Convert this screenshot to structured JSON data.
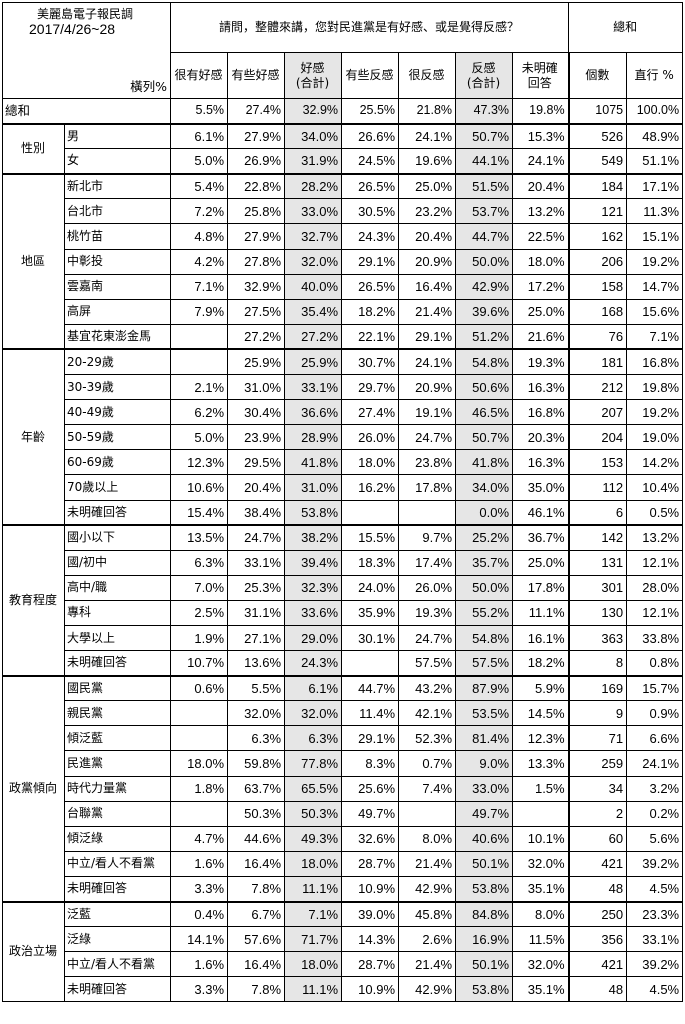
{
  "header": {
    "title_line1": "美麗島電子報民調",
    "title_line2": "2017/4/26~28",
    "corner_label": "橫列%",
    "question": "請問，整體來講，您對民進黨是有好感、或是覺得反感？",
    "total_group": "總和",
    "columns": [
      "很有好感",
      "有些好感",
      "好感\n(合計)",
      "有些反感",
      "很反感",
      "反感\n(合計)",
      "未明確\n回答",
      "個數",
      "直行 %"
    ]
  },
  "total_row": {
    "label": "總和",
    "values": [
      "5.5%",
      "27.4%",
      "32.9%",
      "25.5%",
      "21.8%",
      "47.3%",
      "19.8%",
      "1075",
      "100.0%"
    ]
  },
  "groups": [
    {
      "name": "性別",
      "rows": [
        {
          "label": "男",
          "values": [
            "6.1%",
            "27.9%",
            "34.0%",
            "26.6%",
            "24.1%",
            "50.7%",
            "15.3%",
            "526",
            "48.9%"
          ]
        },
        {
          "label": "女",
          "values": [
            "5.0%",
            "26.9%",
            "31.9%",
            "24.5%",
            "19.6%",
            "44.1%",
            "24.1%",
            "549",
            "51.1%"
          ]
        }
      ]
    },
    {
      "name": "地區",
      "rows": [
        {
          "label": "新北市",
          "values": [
            "5.4%",
            "22.8%",
            "28.2%",
            "26.5%",
            "25.0%",
            "51.5%",
            "20.4%",
            "184",
            "17.1%"
          ]
        },
        {
          "label": "台北市",
          "values": [
            "7.2%",
            "25.8%",
            "33.0%",
            "30.5%",
            "23.2%",
            "53.7%",
            "13.2%",
            "121",
            "11.3%"
          ]
        },
        {
          "label": "桃竹苗",
          "values": [
            "4.8%",
            "27.9%",
            "32.7%",
            "24.3%",
            "20.4%",
            "44.7%",
            "22.5%",
            "162",
            "15.1%"
          ]
        },
        {
          "label": "中彰投",
          "values": [
            "4.2%",
            "27.8%",
            "32.0%",
            "29.1%",
            "20.9%",
            "50.0%",
            "18.0%",
            "206",
            "19.2%"
          ]
        },
        {
          "label": "雲嘉南",
          "values": [
            "7.1%",
            "32.9%",
            "40.0%",
            "26.5%",
            "16.4%",
            "42.9%",
            "17.2%",
            "158",
            "14.7%"
          ]
        },
        {
          "label": "高屏",
          "values": [
            "7.9%",
            "27.5%",
            "35.4%",
            "18.2%",
            "21.4%",
            "39.6%",
            "25.0%",
            "168",
            "15.6%"
          ]
        },
        {
          "label": "基宜花東澎金馬",
          "values": [
            "",
            "27.2%",
            "27.2%",
            "22.1%",
            "29.1%",
            "51.2%",
            "21.6%",
            "76",
            "7.1%"
          ]
        }
      ]
    },
    {
      "name": "年齡",
      "rows": [
        {
          "label": "20-29歲",
          "values": [
            "",
            "25.9%",
            "25.9%",
            "30.7%",
            "24.1%",
            "54.8%",
            "19.3%",
            "181",
            "16.8%"
          ]
        },
        {
          "label": "30-39歲",
          "values": [
            "2.1%",
            "31.0%",
            "33.1%",
            "29.7%",
            "20.9%",
            "50.6%",
            "16.3%",
            "212",
            "19.8%"
          ]
        },
        {
          "label": "40-49歲",
          "values": [
            "6.2%",
            "30.4%",
            "36.6%",
            "27.4%",
            "19.1%",
            "46.5%",
            "16.8%",
            "207",
            "19.2%"
          ]
        },
        {
          "label": "50-59歲",
          "values": [
            "5.0%",
            "23.9%",
            "28.9%",
            "26.0%",
            "24.7%",
            "50.7%",
            "20.3%",
            "204",
            "19.0%"
          ]
        },
        {
          "label": "60-69歲",
          "values": [
            "12.3%",
            "29.5%",
            "41.8%",
            "18.0%",
            "23.8%",
            "41.8%",
            "16.3%",
            "153",
            "14.2%"
          ]
        },
        {
          "label": "70歲以上",
          "values": [
            "10.6%",
            "20.4%",
            "31.0%",
            "16.2%",
            "17.8%",
            "34.0%",
            "35.0%",
            "112",
            "10.4%"
          ]
        },
        {
          "label": "未明確回答",
          "values": [
            "15.4%",
            "38.4%",
            "53.8%",
            "",
            "",
            "0.0%",
            "46.1%",
            "6",
            "0.5%"
          ]
        }
      ]
    },
    {
      "name": "教育程度",
      "rows": [
        {
          "label": "國小以下",
          "values": [
            "13.5%",
            "24.7%",
            "38.2%",
            "15.5%",
            "9.7%",
            "25.2%",
            "36.7%",
            "142",
            "13.2%"
          ]
        },
        {
          "label": "國/初中",
          "values": [
            "6.3%",
            "33.1%",
            "39.4%",
            "18.3%",
            "17.4%",
            "35.7%",
            "25.0%",
            "131",
            "12.1%"
          ]
        },
        {
          "label": "高中/職",
          "values": [
            "7.0%",
            "25.3%",
            "32.3%",
            "24.0%",
            "26.0%",
            "50.0%",
            "17.8%",
            "301",
            "28.0%"
          ]
        },
        {
          "label": "專科",
          "values": [
            "2.5%",
            "31.1%",
            "33.6%",
            "35.9%",
            "19.3%",
            "55.2%",
            "11.1%",
            "130",
            "12.1%"
          ]
        },
        {
          "label": "大學以上",
          "values": [
            "1.9%",
            "27.1%",
            "29.0%",
            "30.1%",
            "24.7%",
            "54.8%",
            "16.1%",
            "363",
            "33.8%"
          ]
        },
        {
          "label": "未明確回答",
          "values": [
            "10.7%",
            "13.6%",
            "24.3%",
            "",
            "57.5%",
            "57.5%",
            "18.2%",
            "8",
            "0.8%"
          ]
        }
      ]
    },
    {
      "name": "政黨傾向",
      "rows": [
        {
          "label": "國民黨",
          "values": [
            "0.6%",
            "5.5%",
            "6.1%",
            "44.7%",
            "43.2%",
            "87.9%",
            "5.9%",
            "169",
            "15.7%"
          ]
        },
        {
          "label": "親民黨",
          "values": [
            "",
            "32.0%",
            "32.0%",
            "11.4%",
            "42.1%",
            "53.5%",
            "14.5%",
            "9",
            "0.9%"
          ]
        },
        {
          "label": "傾泛藍",
          "values": [
            "",
            "6.3%",
            "6.3%",
            "29.1%",
            "52.3%",
            "81.4%",
            "12.3%",
            "71",
            "6.6%"
          ]
        },
        {
          "label": "民進黨",
          "values": [
            "18.0%",
            "59.8%",
            "77.8%",
            "8.3%",
            "0.7%",
            "9.0%",
            "13.3%",
            "259",
            "24.1%"
          ]
        },
        {
          "label": "時代力量黨",
          "values": [
            "1.8%",
            "63.7%",
            "65.5%",
            "25.6%",
            "7.4%",
            "33.0%",
            "1.5%",
            "34",
            "3.2%"
          ]
        },
        {
          "label": "台聯黨",
          "values": [
            "",
            "50.3%",
            "50.3%",
            "49.7%",
            "",
            "49.7%",
            "",
            "2",
            "0.2%"
          ]
        },
        {
          "label": "傾泛綠",
          "values": [
            "4.7%",
            "44.6%",
            "49.3%",
            "32.6%",
            "8.0%",
            "40.6%",
            "10.1%",
            "60",
            "5.6%"
          ]
        },
        {
          "label": "中立/看人不看黨",
          "values": [
            "1.6%",
            "16.4%",
            "18.0%",
            "28.7%",
            "21.4%",
            "50.1%",
            "32.0%",
            "421",
            "39.2%"
          ]
        },
        {
          "label": "未明確回答",
          "values": [
            "3.3%",
            "7.8%",
            "11.1%",
            "10.9%",
            "42.9%",
            "53.8%",
            "35.1%",
            "48",
            "4.5%"
          ]
        }
      ]
    },
    {
      "name": "政治立場",
      "rows": [
        {
          "label": "泛藍",
          "values": [
            "0.4%",
            "6.7%",
            "7.1%",
            "39.0%",
            "45.8%",
            "84.8%",
            "8.0%",
            "250",
            "23.3%"
          ]
        },
        {
          "label": "泛綠",
          "values": [
            "14.1%",
            "57.6%",
            "71.7%",
            "14.3%",
            "2.6%",
            "16.9%",
            "11.5%",
            "356",
            "33.1%"
          ]
        },
        {
          "label": "中立/看人不看黨",
          "values": [
            "1.6%",
            "16.4%",
            "18.0%",
            "28.7%",
            "21.4%",
            "50.1%",
            "32.0%",
            "421",
            "39.2%"
          ]
        },
        {
          "label": "未明確回答",
          "values": [
            "3.3%",
            "7.8%",
            "11.1%",
            "10.9%",
            "42.9%",
            "53.8%",
            "35.1%",
            "48",
            "4.5%"
          ]
        }
      ]
    }
  ]
}
